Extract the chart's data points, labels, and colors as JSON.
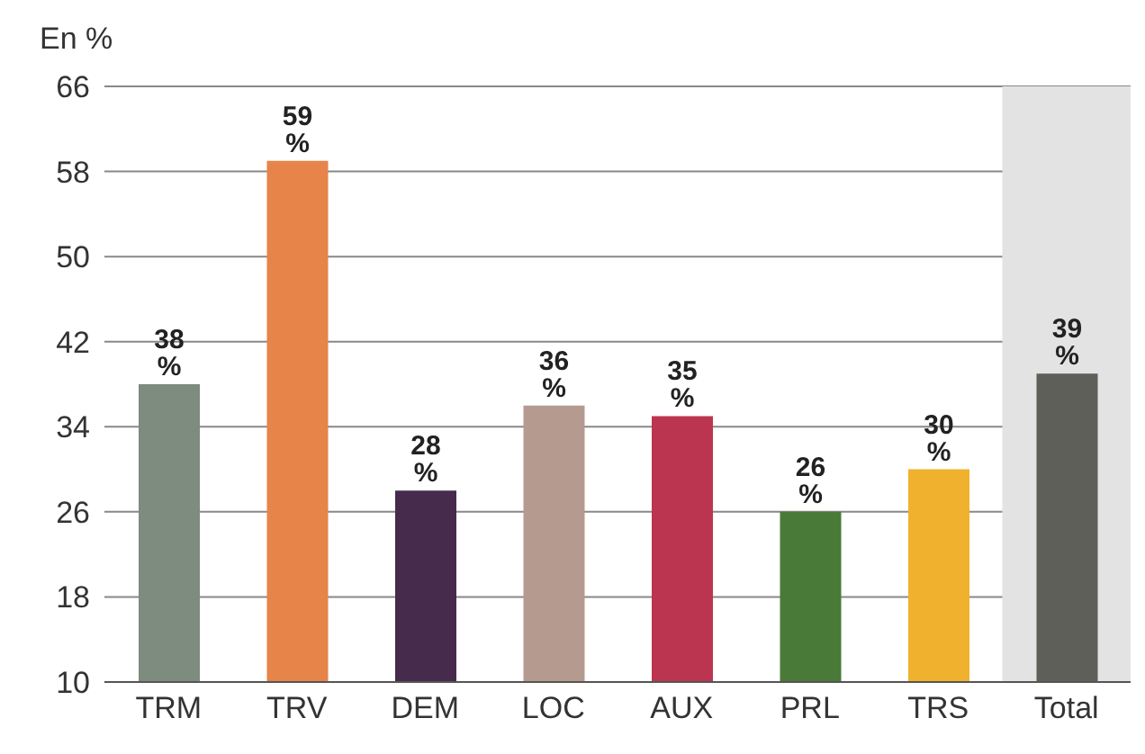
{
  "chart_data": {
    "type": "bar",
    "ylabel": "En %",
    "categories": [
      "TRM",
      "TRV",
      "DEM",
      "LOC",
      "AUX",
      "PRL",
      "TRS",
      "Total"
    ],
    "values": [
      38,
      59,
      28,
      36,
      35,
      26,
      30,
      39
    ],
    "colors": [
      "#7e8b7f",
      "#e6844a",
      "#462b4c",
      "#b59a8f",
      "#bb3450",
      "#4a7a37",
      "#f0b12f",
      "#5e5f59"
    ],
    "value_labels": [
      "38 %",
      "59 %",
      "28 %",
      "36 %",
      "35 %",
      "26 %",
      "30 %",
      "39 %"
    ],
    "ylim": [
      10,
      66
    ],
    "yticks": [
      10,
      18,
      26,
      34,
      42,
      50,
      58,
      66
    ],
    "grid": "y",
    "bands": [
      {
        "axis": "x",
        "from": "Total",
        "to": "Total",
        "color": "#e3e3e3"
      }
    ]
  }
}
